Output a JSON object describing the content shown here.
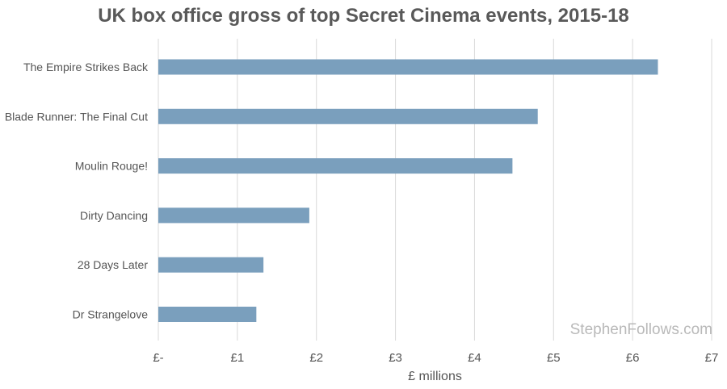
{
  "chart_data": {
    "type": "bar",
    "orientation": "horizontal",
    "title": "UK box office gross of top Secret Cinema events, 2015-18",
    "xlabel": "£ millions",
    "ylabel": "",
    "categories": [
      "The Empire Strikes Back",
      "Blade Runner: The Final Cut",
      "Moulin Rouge!",
      "Dirty Dancing",
      "28 Days Later",
      "Dr Strangelove"
    ],
    "values": [
      6.32,
      4.8,
      4.48,
      1.91,
      1.33,
      1.24
    ],
    "xlim": [
      0,
      7
    ],
    "x_ticks": [
      0,
      1,
      2,
      3,
      4,
      5,
      6,
      7
    ],
    "x_tick_labels": [
      "£-",
      "£1",
      "£2",
      "£3",
      "£4",
      "£5",
      "£6",
      "£7"
    ],
    "grid": "vertical",
    "legend": "none",
    "colors": {
      "bar": "#7a9fbd",
      "grid": "#d9d9d9",
      "text": "#555555",
      "title": "#595959",
      "watermark": "#b9b9b9"
    }
  },
  "watermark": "StephenFollows.com"
}
